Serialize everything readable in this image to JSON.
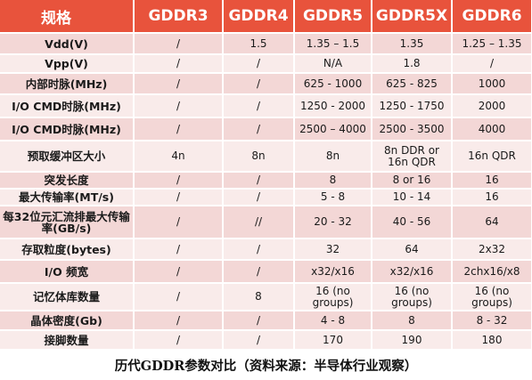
{
  "header": [
    "规格",
    "GDDR3",
    "GDDR4",
    "GDDR5",
    "GDDR5X",
    "GDDR6"
  ],
  "rows": [
    {
      "label": "Vdd(V)",
      "cells": [
        "/",
        "1.5",
        "1.35 – 1.5",
        "1.35",
        "1.25 – 1.35"
      ]
    },
    {
      "label": "Vpp(V)",
      "cells": [
        "/",
        "/",
        "N/A",
        "1.8",
        "/"
      ]
    },
    {
      "label": "内部时脉(MHz)",
      "cells": [
        "/",
        "/",
        "625 - 1000",
        "625 - 825",
        "1000"
      ]
    },
    {
      "label": "I/O CMD时脉(MHz)",
      "cells": [
        "/",
        "/",
        "1250 - 2000",
        "1250 - 1750",
        "2000"
      ]
    },
    {
      "label": "I/O CMD时脉(MHz)",
      "cells": [
        "/",
        "/",
        "2500 – 4000",
        "2500 - 3500",
        "4000"
      ]
    },
    {
      "label": "预取缓冲区大小",
      "cells": [
        "4n",
        "8n",
        "8n",
        "8n DDR or 16n QDR",
        "16n QDR"
      ]
    },
    {
      "label": "突发长度",
      "cells": [
        "/",
        "/",
        "8",
        "8 or 16",
        "16"
      ]
    },
    {
      "label": "最大传输率(MT/s)",
      "cells": [
        "/",
        "/",
        "5 - 8",
        "10 - 14",
        "16"
      ]
    },
    {
      "label": "每32位元汇流排最大传输率(GB/s)",
      "cells": [
        "/",
        "//",
        "20 - 32",
        "40 - 56",
        "64"
      ]
    },
    {
      "label": "存取粒度(bytes)",
      "cells": [
        "/",
        "/",
        "32",
        "64",
        "2x32"
      ]
    },
    {
      "label": "I/O 频宽",
      "cells": [
        "/",
        "/",
        "x32/x16",
        "x32/x16",
        "2chx16/x8"
      ]
    },
    {
      "label": "记忆体库数量",
      "cells": [
        "/",
        "8",
        "16 (no groups)",
        "16 (no groups)",
        "16 (no groups)"
      ]
    },
    {
      "label": "晶体密度(Gb)",
      "cells": [
        "/",
        "/",
        "4 - 8",
        "8",
        "8 - 32"
      ]
    },
    {
      "label": "接脚数量",
      "cells": [
        "/",
        "/",
        "170",
        "190",
        "180"
      ]
    }
  ],
  "caption": "历代GDDR参数对比（资料来源：半导体行业观察）",
  "colors": {
    "header_bg": "#e8533c",
    "row_dark": "#f3d7d6",
    "row_light": "#f9ebea",
    "text": "#1a1a1a"
  }
}
